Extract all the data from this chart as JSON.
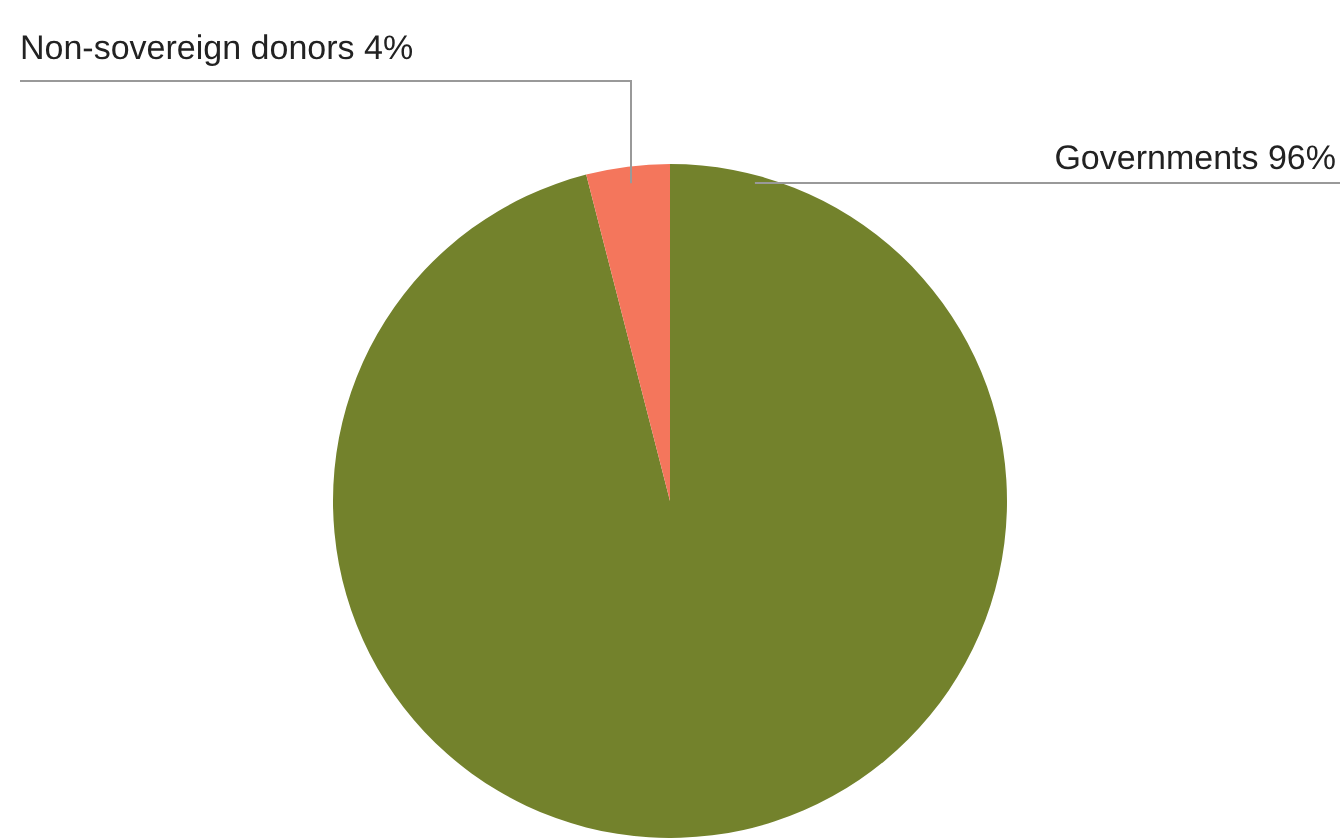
{
  "chart_data": {
    "type": "pie",
    "categories": [
      "Governments",
      "Non-sovereign donors"
    ],
    "values": [
      96,
      4
    ],
    "colors": [
      "#73822c",
      "#f4765c"
    ],
    "value_labels": [
      "96%",
      "4%"
    ],
    "legend": false
  }
}
